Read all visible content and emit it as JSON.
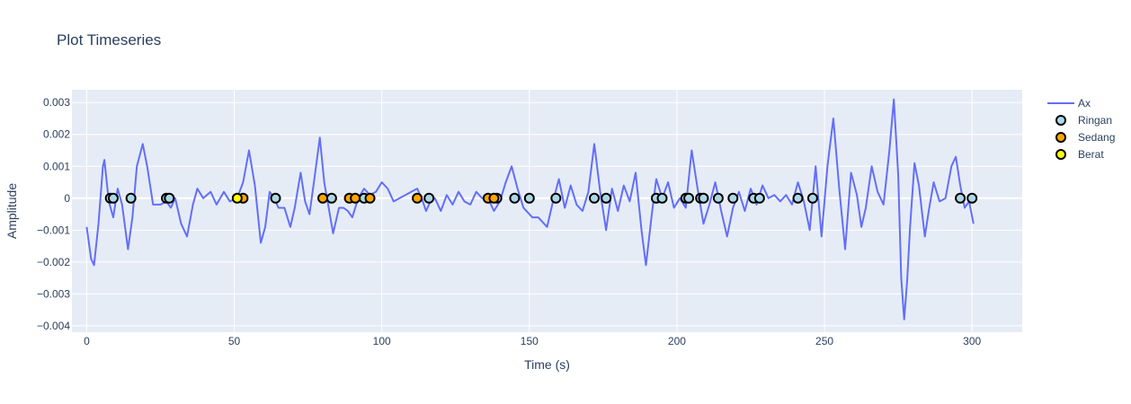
{
  "chart_data": {
    "type": "line",
    "title": "Plot Timeseries",
    "xlabel": "Time (s)",
    "ylabel": "Amplitude",
    "xlim": [
      -5,
      317
    ],
    "ylim": [
      -0.0042,
      0.0034
    ],
    "xticks": [
      0,
      50,
      100,
      150,
      200,
      250,
      300
    ],
    "xtick_labels": [
      "0",
      "50",
      "100",
      "150",
      "200",
      "250",
      "300"
    ],
    "yticks": [
      0.003,
      0.002,
      0.001,
      0,
      -0.001,
      -0.002,
      -0.003,
      -0.004
    ],
    "ytick_labels": [
      "0.003",
      "0.002",
      "0.001",
      "0",
      "−0.001",
      "−0.002",
      "−0.003",
      "−0.004"
    ],
    "grid": true,
    "legend_position": "top-right",
    "series": [
      {
        "name": "Ax",
        "kind": "line",
        "color": "#636efa",
        "points": [
          [
            0,
            -0.0009
          ],
          [
            1.5,
            -0.0019
          ],
          [
            2.5,
            -0.0021
          ],
          [
            4,
            -0.0008
          ],
          [
            5.5,
            0.001
          ],
          [
            6,
            0.0012
          ],
          [
            7.5,
            -0.0001
          ],
          [
            9,
            -0.0006
          ],
          [
            10.5,
            0.0003
          ],
          [
            12,
            -0.0002
          ],
          [
            14,
            -0.0016
          ],
          [
            15.5,
            -0.0006
          ],
          [
            17,
            0.001
          ],
          [
            19,
            0.0017
          ],
          [
            20.5,
            0.001
          ],
          [
            22.5,
            -0.0002
          ],
          [
            25,
            -0.0002
          ],
          [
            27,
            -0.0001
          ],
          [
            28.5,
            -0.0003
          ],
          [
            30,
            0.0
          ],
          [
            32,
            -0.0008
          ],
          [
            34,
            -0.0012
          ],
          [
            36,
            -0.0002
          ],
          [
            37.5,
            0.0003
          ],
          [
            39.5,
            0.0
          ],
          [
            42,
            0.0002
          ],
          [
            44,
            -0.0002
          ],
          [
            46.5,
            0.0002
          ],
          [
            48.5,
            -0.0001
          ],
          [
            51,
            0.0
          ],
          [
            53,
            0.0005
          ],
          [
            55,
            0.0015
          ],
          [
            57,
            0.0004
          ],
          [
            59,
            -0.0014
          ],
          [
            60.5,
            -0.0009
          ],
          [
            62,
            0.0002
          ],
          [
            63.5,
            0.0
          ],
          [
            65,
            -0.0003
          ],
          [
            67,
            -0.0003
          ],
          [
            69,
            -0.0009
          ],
          [
            70.5,
            -0.0003
          ],
          [
            72.5,
            0.0008
          ],
          [
            74,
            -0.0001
          ],
          [
            75.5,
            -0.0005
          ],
          [
            77,
            0.0005
          ],
          [
            79,
            0.0019
          ],
          [
            80.5,
            0.0005
          ],
          [
            82,
            -0.0003
          ],
          [
            83.5,
            -0.0011
          ],
          [
            85.5,
            -0.0003
          ],
          [
            87,
            -0.0003
          ],
          [
            88.5,
            -0.0004
          ],
          [
            90,
            -0.0006
          ],
          [
            92,
            0.0
          ],
          [
            94,
            0.0003
          ],
          [
            96,
            0.0001
          ],
          [
            98,
            0.0002
          ],
          [
            100,
            0.0005
          ],
          [
            102,
            0.0003
          ],
          [
            104,
            -0.0001
          ],
          [
            106,
            0.0
          ],
          [
            108,
            0.0001
          ],
          [
            110,
            0.0002
          ],
          [
            112,
            0.0003
          ],
          [
            113.5,
            0.0
          ],
          [
            115,
            -0.0004
          ],
          [
            116.5,
            -0.0001
          ],
          [
            118,
            0.0
          ],
          [
            120,
            -0.0004
          ],
          [
            122,
            0.0001
          ],
          [
            124,
            -0.0002
          ],
          [
            126,
            0.0002
          ],
          [
            128,
            -0.0001
          ],
          [
            130,
            -0.0002
          ],
          [
            132,
            0.0002
          ],
          [
            134,
            0.0
          ],
          [
            136,
            0.0
          ],
          [
            138,
            -0.0004
          ],
          [
            140,
            -0.0001
          ],
          [
            142,
            0.0005
          ],
          [
            144,
            0.001
          ],
          [
            146,
            0.0003
          ],
          [
            148,
            -0.0003
          ],
          [
            151,
            -0.0006
          ],
          [
            153,
            -0.0006
          ],
          [
            156,
            -0.0009
          ],
          [
            158,
            -0.0001
          ],
          [
            160,
            0.0006
          ],
          [
            162,
            -0.0003
          ],
          [
            164,
            0.0004
          ],
          [
            166,
            -0.0002
          ],
          [
            168,
            -0.0004
          ],
          [
            170,
            0.0002
          ],
          [
            172,
            0.0017
          ],
          [
            174,
            0.0002
          ],
          [
            176,
            -0.001
          ],
          [
            178,
            0.0003
          ],
          [
            180,
            -0.0004
          ],
          [
            182,
            0.0004
          ],
          [
            184,
            -0.0001
          ],
          [
            186,
            0.0008
          ],
          [
            188,
            -0.001
          ],
          [
            189.5,
            -0.0021
          ],
          [
            191.5,
            -0.0005
          ],
          [
            193,
            0.0006
          ],
          [
            195,
            0.0
          ],
          [
            197,
            0.0005
          ],
          [
            199,
            -0.0003
          ],
          [
            201,
            0.0
          ],
          [
            203,
            -0.0003
          ],
          [
            205,
            0.0015
          ],
          [
            207,
            0.0003
          ],
          [
            209,
            -0.0008
          ],
          [
            211,
            -0.0002
          ],
          [
            213,
            0.0005
          ],
          [
            215,
            -0.0004
          ],
          [
            217,
            -0.0012
          ],
          [
            219,
            -0.0003
          ],
          [
            221,
            0.0002
          ],
          [
            223,
            -0.0004
          ],
          [
            225,
            0.0003
          ],
          [
            227,
            -0.0002
          ],
          [
            229,
            0.0004
          ],
          [
            231,
            0.0
          ],
          [
            233,
            0.0001
          ],
          [
            235,
            -0.0001
          ],
          [
            237,
            0.0001
          ],
          [
            239,
            -0.0002
          ],
          [
            241,
            0.0005
          ],
          [
            243,
            -0.0001
          ],
          [
            245,
            -0.001
          ],
          [
            247,
            0.001
          ],
          [
            249,
            -0.0012
          ],
          [
            251,
            0.001
          ],
          [
            253,
            0.0025
          ],
          [
            255,
            0.0003
          ],
          [
            257,
            -0.0016
          ],
          [
            259,
            0.0008
          ],
          [
            261,
            0.0001
          ],
          [
            262.5,
            -0.0009
          ],
          [
            264,
            -0.0003
          ],
          [
            266,
            0.001
          ],
          [
            268,
            0.0002
          ],
          [
            270,
            -0.0002
          ],
          [
            272,
            0.0015
          ],
          [
            273.5,
            0.0031
          ],
          [
            275,
            0.0007
          ],
          [
            276,
            -0.0025
          ],
          [
            277,
            -0.0038
          ],
          [
            278,
            -0.0026
          ],
          [
            279,
            -0.0009
          ],
          [
            280.5,
            0.0011
          ],
          [
            282,
            0.0004
          ],
          [
            284,
            -0.0012
          ],
          [
            285.5,
            -0.0003
          ],
          [
            287,
            0.0005
          ],
          [
            289,
            -0.0001
          ],
          [
            291,
            0.0
          ],
          [
            293,
            0.001
          ],
          [
            294.5,
            0.0013
          ],
          [
            296,
            0.0004
          ],
          [
            297.5,
            -0.0003
          ],
          [
            299,
            -0.0001
          ],
          [
            300.5,
            -0.0008
          ]
        ]
      },
      {
        "name": "Ringan",
        "kind": "markers",
        "color": "#add8e6",
        "x": [
          8,
          9,
          15,
          27,
          28,
          64,
          83,
          94,
          116,
          139,
          145,
          150,
          159,
          172,
          176,
          193,
          195,
          203,
          204,
          208,
          209,
          214,
          219,
          226,
          228,
          241,
          246,
          296,
          300
        ],
        "y": [
          0,
          0,
          0,
          0,
          0,
          0,
          0,
          0,
          0,
          0,
          0,
          0,
          0,
          0,
          0,
          0,
          0,
          0,
          0,
          0,
          0,
          0,
          0,
          0,
          0,
          0,
          0,
          0,
          0
        ]
      },
      {
        "name": "Sedang",
        "kind": "markers",
        "color": "#ffa500",
        "x": [
          53,
          80,
          89,
          91,
          96,
          112,
          136,
          138
        ],
        "y": [
          0,
          0,
          0,
          0,
          0,
          0,
          0,
          0
        ]
      },
      {
        "name": "Berat",
        "kind": "markers",
        "color": "#ffff00",
        "x": [
          51
        ],
        "y": [
          0
        ]
      }
    ]
  }
}
